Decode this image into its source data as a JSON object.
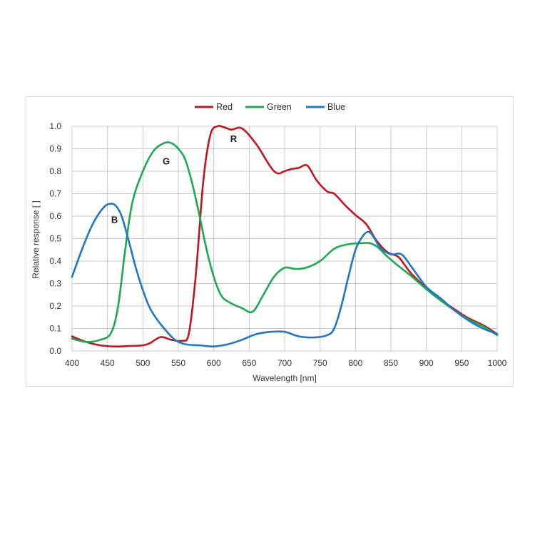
{
  "chart_data": {
    "type": "line",
    "xlabel": "Wavelength [nm]",
    "ylabel": "Relative response [ ]",
    "xlim": [
      400,
      1000
    ],
    "ylim": [
      0,
      1.0
    ],
    "xticks": [
      "400",
      "450",
      "500",
      "550",
      "600",
      "650",
      "700",
      "750",
      "800",
      "850",
      "900",
      "950",
      "1000"
    ],
    "yticks": [
      "0.0",
      "0.1",
      "0.2",
      "0.3",
      "0.4",
      "0.5",
      "0.6",
      "0.7",
      "0.8",
      "0.9",
      "1.0"
    ],
    "grid": true,
    "legend_position": "top",
    "series": [
      {
        "name": "Red",
        "color": "#c0161c",
        "x": [
          400,
          420,
          440,
          460,
          480,
          500,
          510,
          525,
          540,
          555,
          565,
          575,
          585,
          595,
          605,
          615,
          625,
          640,
          660,
          680,
          690,
          700,
          710,
          720,
          732,
          745,
          760,
          770,
          785,
          800,
          815,
          830,
          845,
          860,
          870,
          880,
          900,
          920,
          940,
          960,
          980,
          1000
        ],
        "y": [
          0.065,
          0.04,
          0.025,
          0.02,
          0.022,
          0.025,
          0.035,
          0.062,
          0.05,
          0.045,
          0.08,
          0.35,
          0.75,
          0.96,
          1.0,
          0.995,
          0.985,
          0.99,
          0.92,
          0.82,
          0.79,
          0.8,
          0.81,
          0.815,
          0.825,
          0.76,
          0.71,
          0.7,
          0.65,
          0.605,
          0.565,
          0.49,
          0.44,
          0.42,
          0.38,
          0.34,
          0.28,
          0.23,
          0.185,
          0.145,
          0.115,
          0.075
        ]
      },
      {
        "name": "Green",
        "color": "#1ea84f",
        "x": [
          400,
          420,
          440,
          455,
          465,
          475,
          485,
          500,
          515,
          530,
          540,
          550,
          560,
          570,
          580,
          590,
          600,
          610,
          620,
          640,
          655,
          670,
          685,
          700,
          715,
          730,
          750,
          770,
          790,
          810,
          820,
          830,
          845,
          860,
          880,
          900,
          920,
          940,
          960,
          980,
          1000
        ],
        "y": [
          0.055,
          0.04,
          0.05,
          0.08,
          0.2,
          0.45,
          0.66,
          0.8,
          0.89,
          0.925,
          0.925,
          0.9,
          0.85,
          0.74,
          0.6,
          0.45,
          0.33,
          0.25,
          0.22,
          0.19,
          0.175,
          0.25,
          0.33,
          0.37,
          0.365,
          0.37,
          0.4,
          0.455,
          0.475,
          0.48,
          0.48,
          0.465,
          0.42,
          0.38,
          0.33,
          0.275,
          0.225,
          0.18,
          0.14,
          0.11,
          0.07
        ]
      },
      {
        "name": "Blue",
        "color": "#1f77c5",
        "x": [
          400,
          415,
          430,
          445,
          455,
          462,
          470,
          480,
          490,
          500,
          510,
          520,
          530,
          545,
          560,
          580,
          600,
          620,
          640,
          660,
          680,
          700,
          720,
          740,
          760,
          770,
          780,
          790,
          800,
          810,
          818,
          825,
          835,
          850,
          865,
          880,
          900,
          920,
          940,
          960,
          980,
          1000
        ],
        "y": [
          0.33,
          0.46,
          0.57,
          0.64,
          0.655,
          0.645,
          0.6,
          0.49,
          0.37,
          0.27,
          0.19,
          0.14,
          0.1,
          0.05,
          0.03,
          0.025,
          0.02,
          0.03,
          0.05,
          0.075,
          0.085,
          0.085,
          0.065,
          0.06,
          0.07,
          0.1,
          0.2,
          0.33,
          0.45,
          0.51,
          0.53,
          0.51,
          0.46,
          0.43,
          0.43,
          0.37,
          0.285,
          0.235,
          0.18,
          0.135,
          0.1,
          0.075
        ]
      }
    ],
    "annotations": [
      {
        "text": "R",
        "x": 628,
        "y": 0.93
      },
      {
        "text": "G",
        "x": 533,
        "y": 0.83
      },
      {
        "text": "B",
        "x": 460,
        "y": 0.57
      }
    ]
  }
}
